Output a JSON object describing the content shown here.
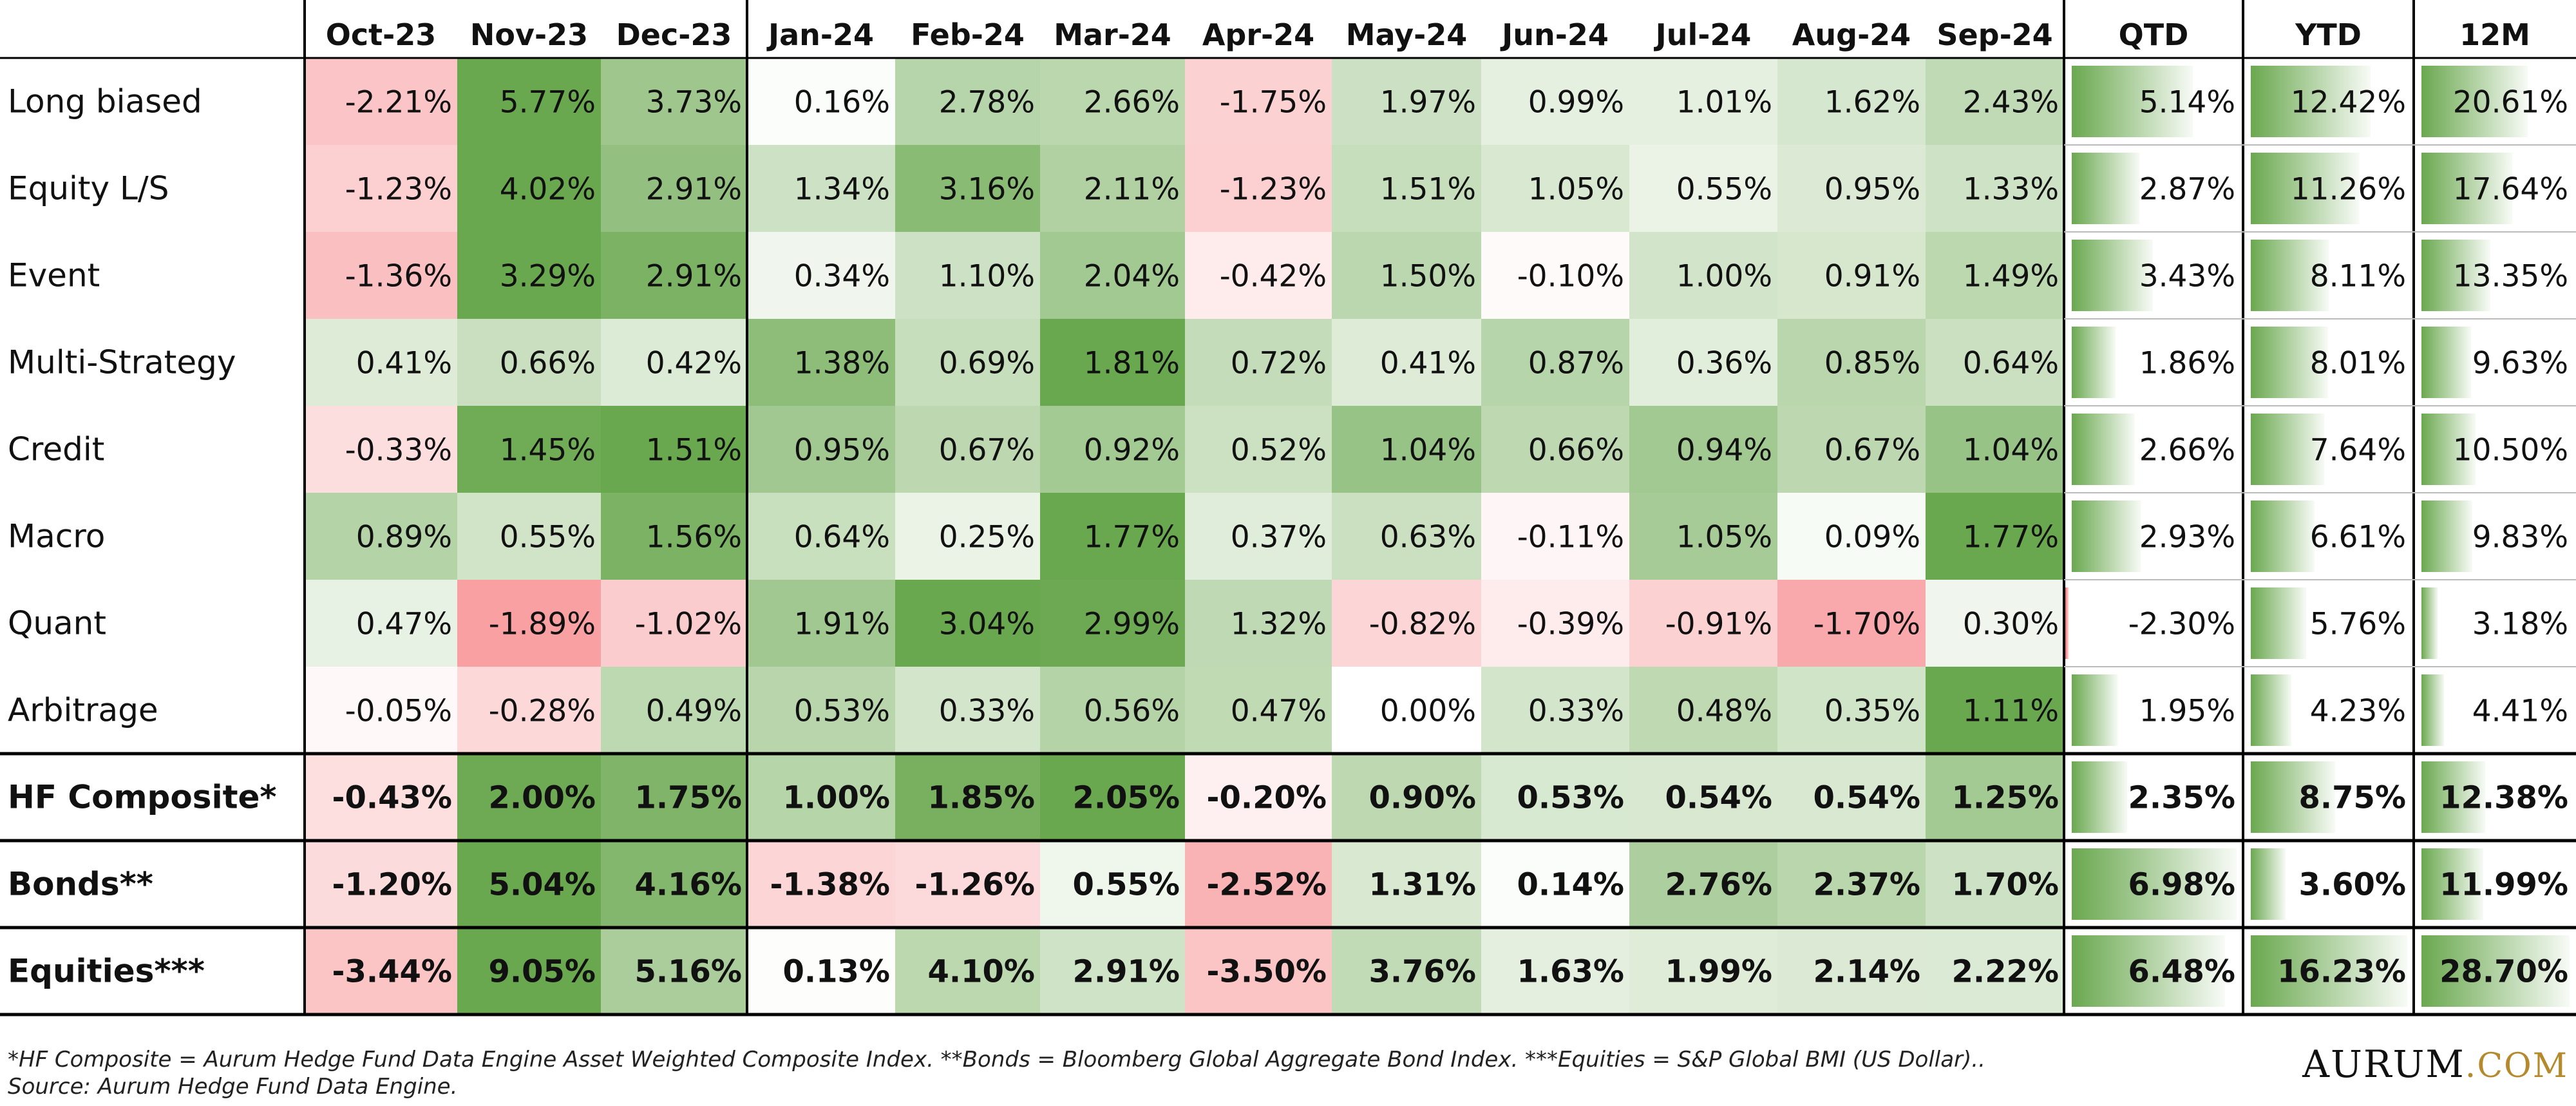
{
  "chart_data": {
    "type": "heatmap",
    "months": [
      "Oct-23",
      "Nov-23",
      "Dec-23",
      "Jan-24",
      "Feb-24",
      "Mar-24",
      "Apr-24",
      "May-24",
      "Jun-24",
      "Jul-24",
      "Aug-24",
      "Sep-24"
    ],
    "summary_columns": [
      "QTD",
      "YTD",
      "12M"
    ],
    "rows": [
      {
        "name": "Long biased",
        "values": [
          -2.21,
          5.77,
          3.73,
          0.16,
          2.78,
          2.66,
          -1.75,
          1.97,
          0.99,
          1.01,
          1.62,
          2.43
        ],
        "qtd": 5.14,
        "ytd": 12.42,
        "m12": 20.61,
        "bold": false
      },
      {
        "name": "Equity L/S",
        "values": [
          -1.23,
          4.02,
          2.91,
          1.34,
          3.16,
          2.11,
          -1.23,
          1.51,
          1.05,
          0.55,
          0.95,
          1.33
        ],
        "qtd": 2.87,
        "ytd": 11.26,
        "m12": 17.64,
        "bold": false
      },
      {
        "name": "Event",
        "values": [
          -1.36,
          3.29,
          2.91,
          0.34,
          1.1,
          2.04,
          -0.42,
          1.5,
          -0.1,
          1.0,
          0.91,
          1.49
        ],
        "qtd": 3.43,
        "ytd": 8.11,
        "m12": 13.35,
        "bold": false
      },
      {
        "name": "Multi-Strategy",
        "values": [
          0.41,
          0.66,
          0.42,
          1.38,
          0.69,
          1.81,
          0.72,
          0.41,
          0.87,
          0.36,
          0.85,
          0.64
        ],
        "qtd": 1.86,
        "ytd": 8.01,
        "m12": 9.63,
        "bold": false
      },
      {
        "name": "Credit",
        "values": [
          -0.33,
          1.45,
          1.51,
          0.95,
          0.67,
          0.92,
          0.52,
          1.04,
          0.66,
          0.94,
          0.67,
          1.04
        ],
        "qtd": 2.66,
        "ytd": 7.64,
        "m12": 10.5,
        "bold": false
      },
      {
        "name": "Macro",
        "values": [
          0.89,
          0.55,
          1.56,
          0.64,
          0.25,
          1.77,
          0.37,
          0.63,
          -0.11,
          1.05,
          0.09,
          1.77
        ],
        "qtd": 2.93,
        "ytd": 6.61,
        "m12": 9.83,
        "bold": false
      },
      {
        "name": "Quant",
        "values": [
          0.47,
          -1.89,
          -1.02,
          1.91,
          3.04,
          2.99,
          1.32,
          -0.82,
          -0.39,
          -0.91,
          -1.7,
          0.3
        ],
        "qtd": -2.3,
        "ytd": 5.76,
        "m12": 3.18,
        "bold": false
      },
      {
        "name": "Arbitrage",
        "values": [
          -0.05,
          -0.28,
          0.49,
          0.53,
          0.33,
          0.56,
          0.47,
          0.0,
          0.33,
          0.48,
          0.35,
          1.11
        ],
        "qtd": 1.95,
        "ytd": 4.23,
        "m12": 4.41,
        "bold": false
      },
      {
        "name": "HF Composite*",
        "values": [
          -0.43,
          2.0,
          1.75,
          1.0,
          1.85,
          2.05,
          -0.2,
          0.9,
          0.53,
          0.54,
          0.54,
          1.25
        ],
        "qtd": 2.35,
        "ytd": 8.75,
        "m12": 12.38,
        "bold": true
      },
      {
        "name": "Bonds**",
        "values": [
          -1.2,
          5.04,
          4.16,
          -1.38,
          -1.26,
          0.55,
          -2.52,
          1.31,
          0.14,
          2.76,
          2.37,
          1.7
        ],
        "qtd": 6.98,
        "ytd": 3.6,
        "m12": 11.99,
        "bold": true
      },
      {
        "name": "Equities***",
        "values": [
          -3.44,
          9.05,
          5.16,
          0.13,
          4.1,
          2.91,
          -3.5,
          3.76,
          1.63,
          1.99,
          2.14,
          2.22
        ],
        "qtd": 6.48,
        "ytd": 16.23,
        "m12": 28.7,
        "bold": true
      }
    ],
    "colors": {
      "positive": "#6aa84f",
      "negative": "#f4666a",
      "neutral": "#ffffff",
      "bar": "#6aa84f",
      "bar_negative": "#f4666a"
    }
  },
  "footnotes": {
    "line1": "*HF Composite = Aurum Hedge Fund Data Engine Asset Weighted Composite Index. **Bonds = Bloomberg Global Aggregate Bond Index. ***Equities = S&P Global BMI (US Dollar)..",
    "line2": "Source: Aurum Hedge Fund Data Engine."
  },
  "logo": {
    "name": "Aurum",
    "tld": ".com"
  }
}
